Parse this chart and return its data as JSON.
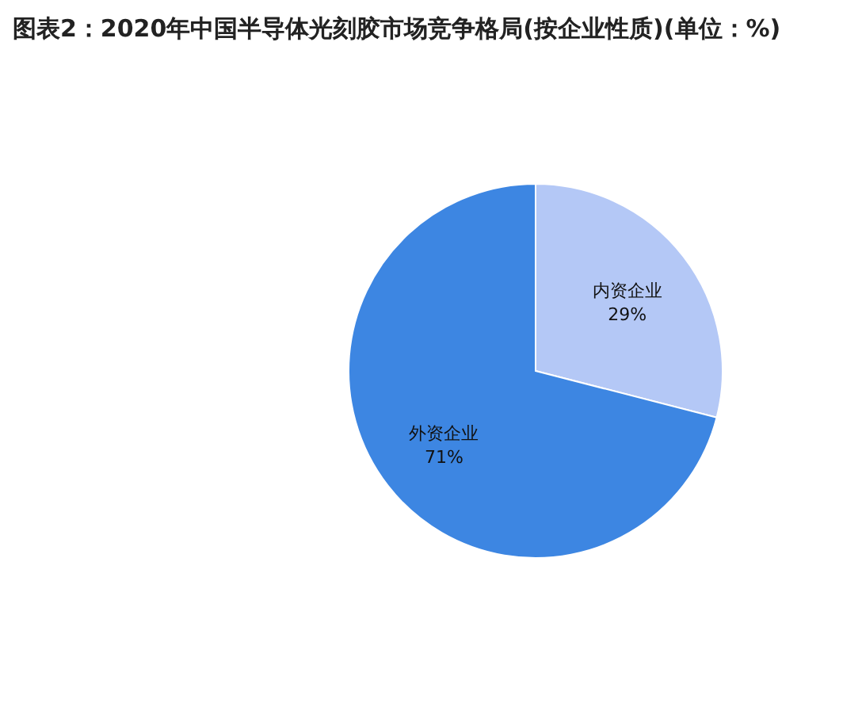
{
  "chart_data": {
    "type": "pie",
    "title": "图表2：2020年中国半导体光刻胶市场竞争格局(按企业性质)(单位：%)",
    "categories": [
      "内资企业",
      "外资企业"
    ],
    "values": [
      29,
      71
    ],
    "colors": [
      "#b4c8f6",
      "#3d86e2"
    ],
    "value_labels": [
      "29%",
      "71%"
    ]
  }
}
